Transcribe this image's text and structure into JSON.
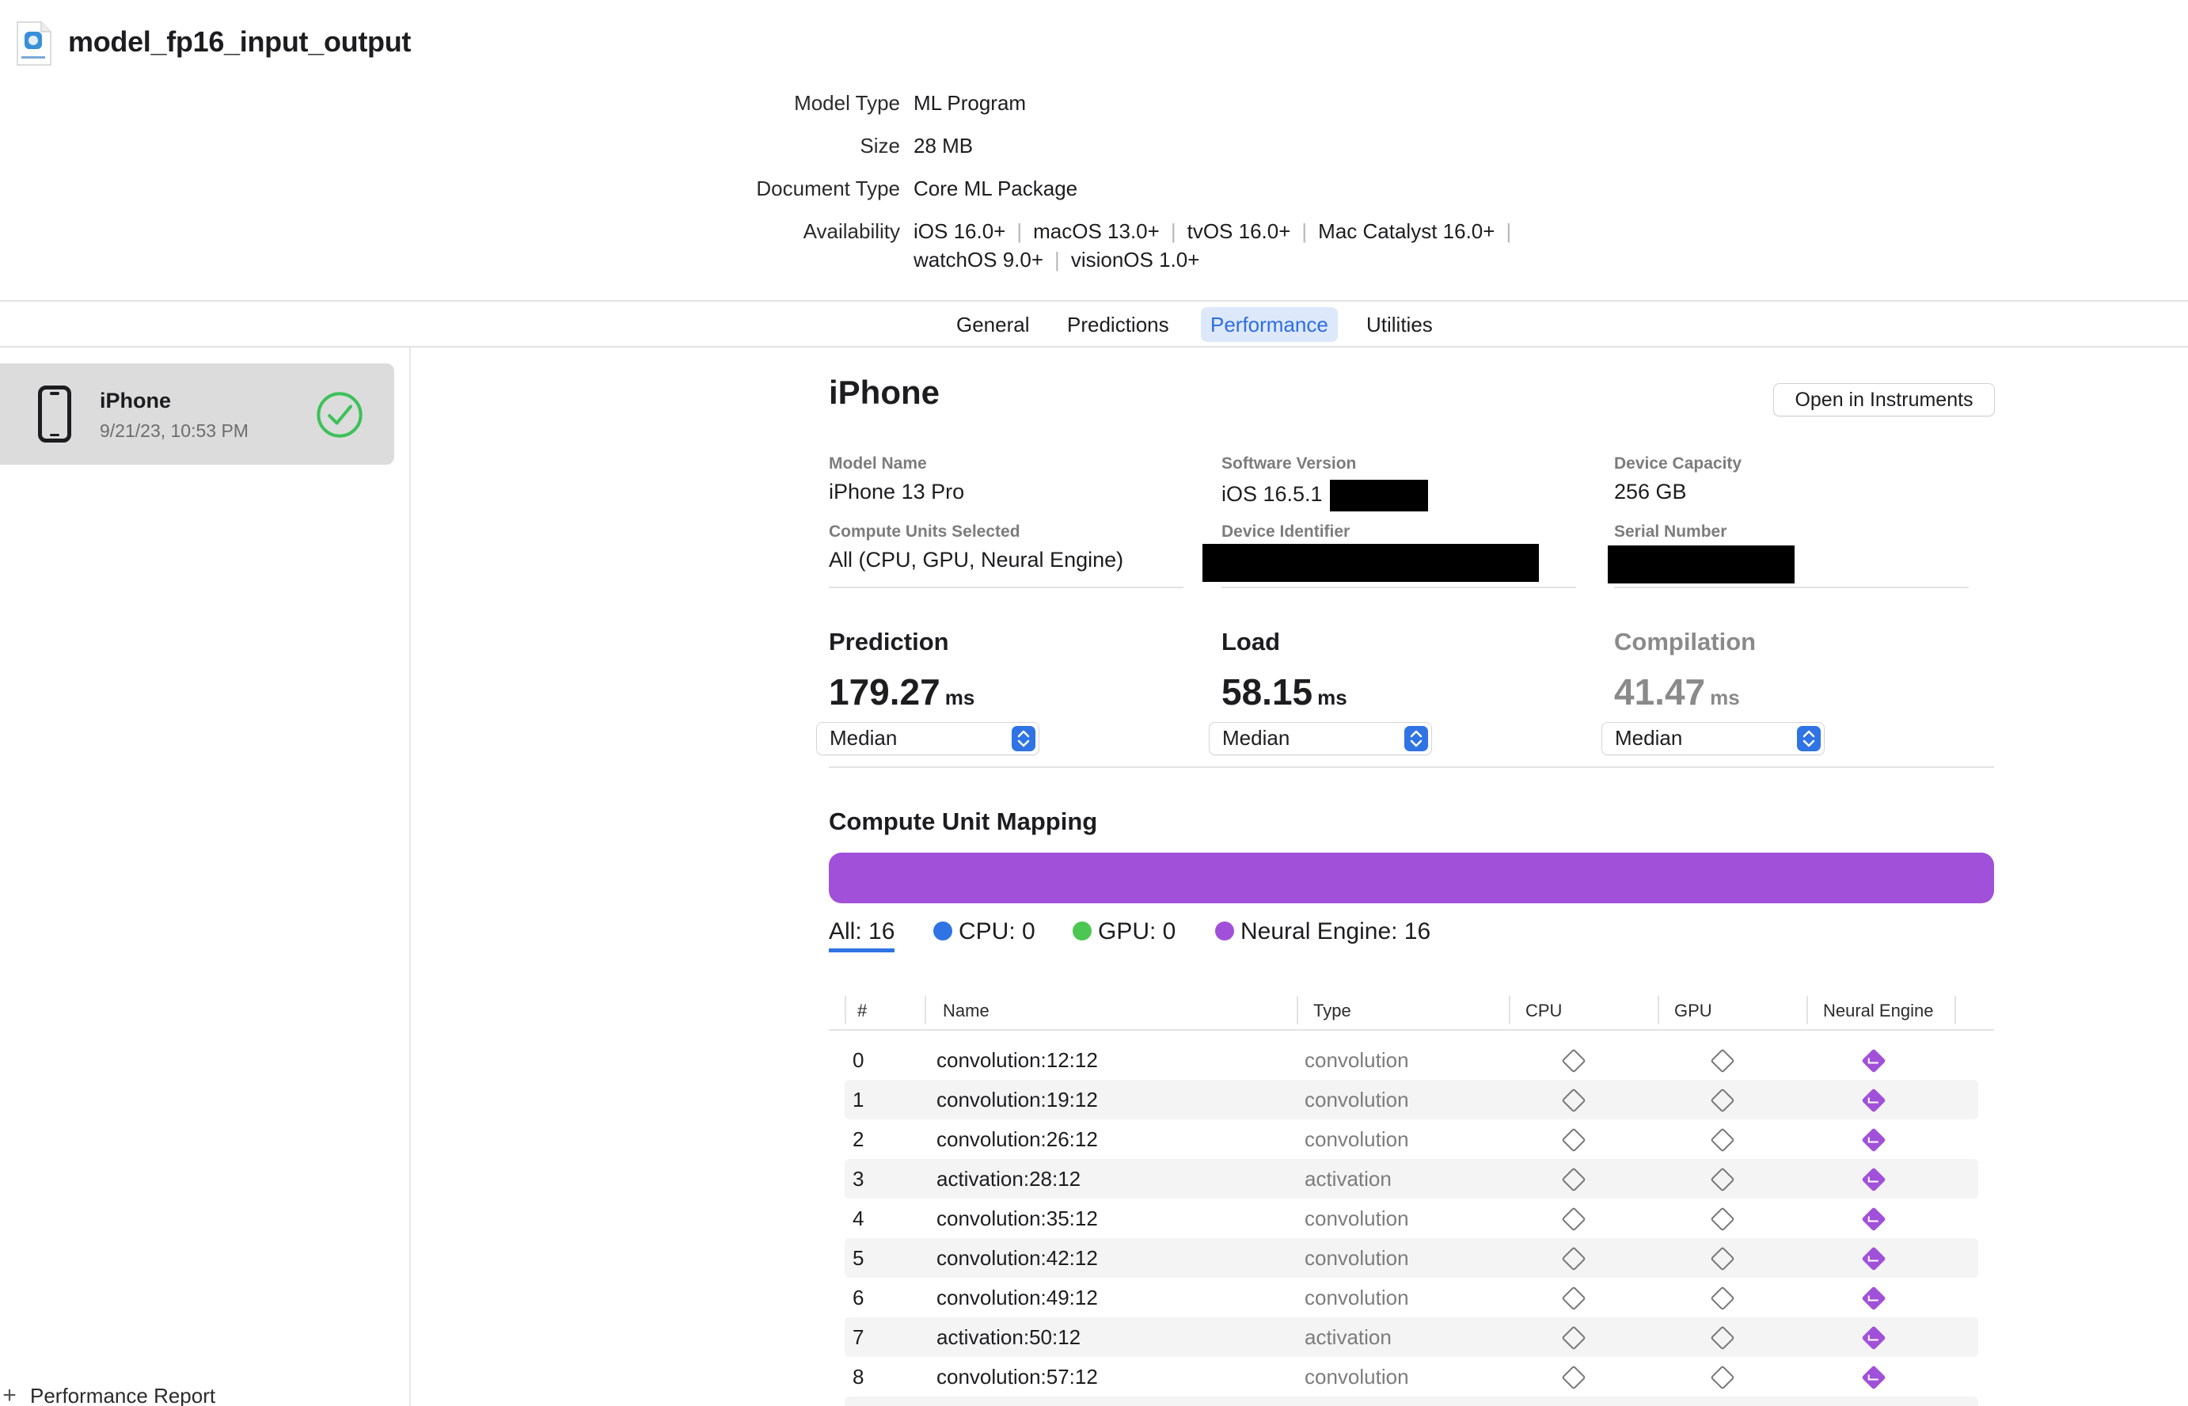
{
  "document": {
    "title": "model_fp16_input_output",
    "icon": "coreml-package-icon"
  },
  "metadata": {
    "model_type_label": "Model Type",
    "model_type": "ML Program",
    "size_label": "Size",
    "size": "28 MB",
    "document_type_label": "Document Type",
    "document_type": "Core ML Package",
    "availability_label": "Availability",
    "availability": [
      "iOS 16.0+",
      "macOS 13.0+",
      "tvOS 16.0+",
      "Mac Catalyst 16.0+",
      "watchOS 9.0+",
      "visionOS 1.0+"
    ],
    "separator": "|"
  },
  "tabs": [
    {
      "label": "General",
      "active": false
    },
    {
      "label": "Predictions",
      "active": false
    },
    {
      "label": "Performance",
      "active": true
    },
    {
      "label": "Utilities",
      "active": false
    }
  ],
  "sidebar": {
    "device": {
      "name": "iPhone",
      "date": "9/21/23, 10:53 PM",
      "icon": "iphone-icon",
      "status_icon": "checkmark-circle-icon",
      "status_color": "#3cc159"
    },
    "add_label": "Performance Report",
    "add_icon": "plus-icon"
  },
  "panel": {
    "title": "iPhone",
    "open_button": "Open in Instruments",
    "fields": {
      "model_name_label": "Model Name",
      "model_name": "iPhone 13 Pro",
      "software_version_label": "Software Version",
      "software_version": "iOS 16.5.1",
      "device_capacity_label": "Device Capacity",
      "device_capacity": "256 GB",
      "compute_units_label": "Compute Units Selected",
      "compute_units": "All (CPU, GPU, Neural Engine)",
      "device_identifier_label": "Device Identifier",
      "serial_number_label": "Serial Number"
    },
    "metrics": {
      "prediction": {
        "title": "Prediction",
        "value": "179.27",
        "unit": "ms",
        "aggregate": "Median"
      },
      "load": {
        "title": "Load",
        "value": "58.15",
        "unit": "ms",
        "aggregate": "Median"
      },
      "compilation": {
        "title": "Compilation",
        "value": "41.47",
        "unit": "ms",
        "aggregate": "Median"
      }
    },
    "mapping": {
      "title": "Compute Unit Mapping",
      "bar_color": "#a151d9",
      "filters": {
        "all": "All: 16",
        "cpu": "CPU: 0",
        "gpu": "GPU: 0",
        "neural": "Neural Engine: 16"
      },
      "colors": {
        "cpu": "#2f73e4",
        "gpu": "#4cc752",
        "neural": "#a151d9"
      }
    },
    "table": {
      "columns": [
        "#",
        "Name",
        "Type",
        "CPU",
        "GPU",
        "Neural Engine"
      ],
      "rows": [
        {
          "index": "0",
          "name": "convolution:12:12",
          "type": "convolution"
        },
        {
          "index": "1",
          "name": "convolution:19:12",
          "type": "convolution"
        },
        {
          "index": "2",
          "name": "convolution:26:12",
          "type": "convolution"
        },
        {
          "index": "3",
          "name": "activation:28:12",
          "type": "activation"
        },
        {
          "index": "4",
          "name": "convolution:35:12",
          "type": "convolution"
        },
        {
          "index": "5",
          "name": "convolution:42:12",
          "type": "convolution"
        },
        {
          "index": "6",
          "name": "convolution:49:12",
          "type": "convolution"
        },
        {
          "index": "7",
          "name": "activation:50:12",
          "type": "activation"
        },
        {
          "index": "8",
          "name": "convolution:57:12",
          "type": "convolution"
        }
      ]
    }
  }
}
